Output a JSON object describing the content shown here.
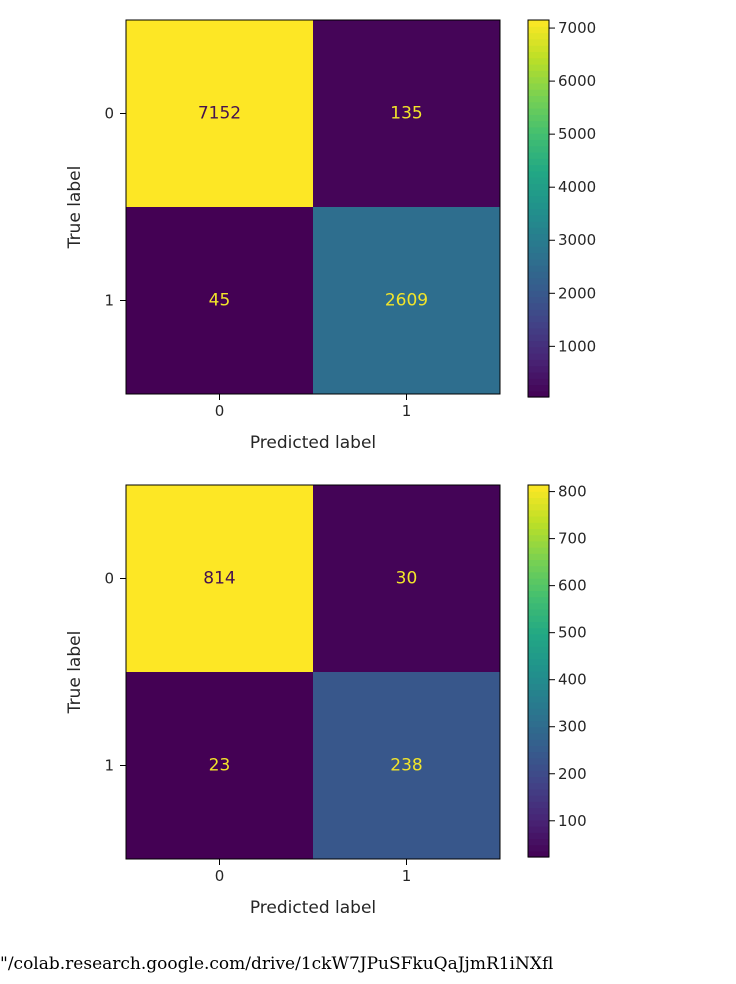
{
  "chart_data": [
    {
      "type": "heatmap",
      "title": "",
      "xlabel": "Predicted label",
      "ylabel": "True label",
      "x_ticklabels": [
        "0",
        "1"
      ],
      "y_ticklabels": [
        "0",
        "1"
      ],
      "values": [
        [
          7152,
          135
        ],
        [
          45,
          2609
        ]
      ],
      "cell_text": [
        [
          "7152",
          "135"
        ],
        [
          "45",
          "2609"
        ]
      ],
      "colormap": "viridis",
      "color_range": [
        45,
        7152
      ],
      "colorbar_ticks": [
        "1000",
        "2000",
        "3000",
        "4000",
        "5000",
        "6000",
        "7000"
      ],
      "grid": false
    },
    {
      "type": "heatmap",
      "title": "",
      "xlabel": "Predicted label",
      "ylabel": "True label",
      "x_ticklabels": [
        "0",
        "1"
      ],
      "y_ticklabels": [
        "0",
        "1"
      ],
      "values": [
        [
          814,
          30
        ],
        [
          23,
          238
        ]
      ],
      "cell_text": [
        [
          "814",
          "30"
        ],
        [
          "23",
          "238"
        ]
      ],
      "colormap": "viridis",
      "color_range": [
        23,
        814
      ],
      "colorbar_ticks": [
        "100",
        "200",
        "300",
        "400",
        "500",
        "600",
        "700",
        "800"
      ],
      "grid": false
    }
  ],
  "caption": "\"/colab.research.google.com/drive/1ckW7JPuSFkuQaJjmR1iNXfl"
}
